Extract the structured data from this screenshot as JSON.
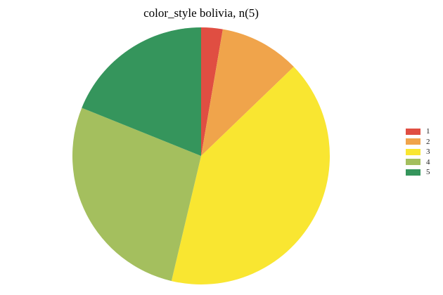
{
  "chart_data": {
    "type": "pie",
    "title": "color_style bolivia, n(5)",
    "categories": [
      "1",
      "2",
      "3",
      "4",
      "5"
    ],
    "values": [
      2.7,
      10.1,
      40.9,
      27.4,
      18.9
    ],
    "colors": [
      "#e04e42",
      "#f0a44b",
      "#f9e631",
      "#a4bf5e",
      "#35955c"
    ],
    "legend_position": "right"
  }
}
